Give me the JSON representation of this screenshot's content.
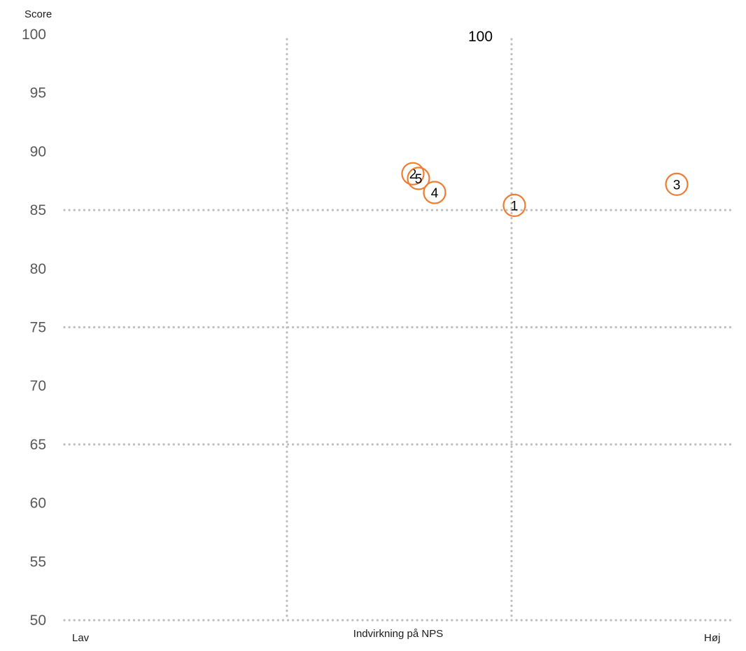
{
  "chart_data": {
    "type": "scatter",
    "ylabel": "Score",
    "xlabel": "Indvirkning på NPS",
    "x_low_label": "Lav",
    "x_high_label": "Høj",
    "ylim": [
      50,
      100
    ],
    "yticks": [
      "100",
      "95",
      "90",
      "85",
      "80",
      "75",
      "70",
      "65",
      "60",
      "55",
      "50"
    ],
    "grid": "dotted",
    "horizontal_reference_lines": [
      85,
      75,
      65,
      50
    ],
    "vertical_reference_label": "100",
    "points": [
      {
        "label": "1",
        "y": 85.4
      },
      {
        "label": "2",
        "y": 88.1
      },
      {
        "label": "5",
        "y": 87.7
      },
      {
        "label": "4",
        "y": 86.5
      },
      {
        "label": "3",
        "y": 87.2
      }
    ],
    "colors": {
      "marker": "#ED7D31",
      "grid": "#BFBFBF",
      "tick_text": "#595959"
    }
  }
}
